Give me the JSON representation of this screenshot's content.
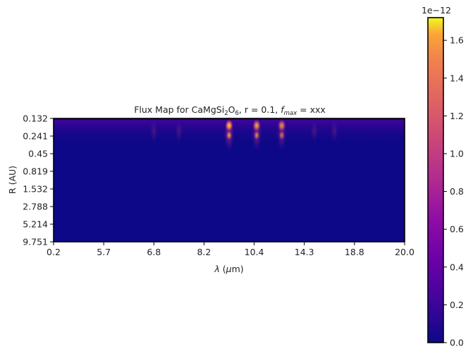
{
  "chart_data": {
    "type": "heatmap",
    "title": {
      "prefix": "Flux Map for CaMgSi",
      "sub1": "2",
      "mid1": "O",
      "sub2": "6",
      "mid2": ", r = 0.1, ",
      "fvar": "f",
      "fsub": "max",
      "suffix": " = xxx"
    },
    "xlabel": {
      "lambda": "λ",
      "rest": " (",
      "mu": "μ",
      "unit": "m)"
    },
    "ylabel": "R (AU)",
    "x_ticks": [
      "0.2",
      "5.7",
      "6.8",
      "8.2",
      "10.4",
      "14.3",
      "18.8",
      "20.0"
    ],
    "y_ticks": [
      "0.132",
      "0.241",
      "0.45",
      "0.819",
      "1.532",
      "2.788",
      "5.214",
      "9.751"
    ],
    "colorbar": {
      "colormap": "plasma",
      "ticks": [
        "0.0",
        "0.2",
        "0.4",
        "0.6",
        "0.8",
        "1.0",
        "1.2",
        "1.4",
        "1.6"
      ],
      "range": [
        0,
        1.72
      ],
      "multiplier": "1e−12"
    },
    "peak_features": [
      {
        "x_index": 3.5,
        "relative_intensity": 1.0
      },
      {
        "x_index": 4.05,
        "relative_intensity": 0.85
      },
      {
        "x_index": 4.55,
        "relative_intensity": 0.75
      }
    ],
    "grid": false,
    "legend": "none"
  }
}
